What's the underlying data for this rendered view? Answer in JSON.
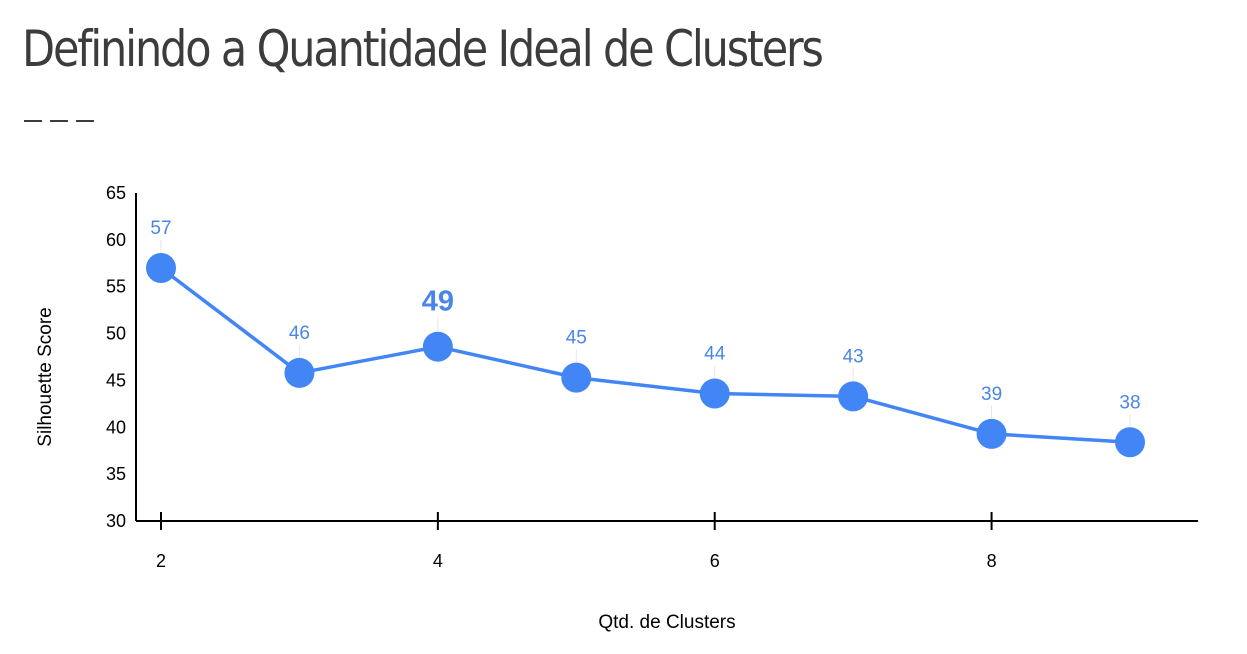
{
  "page": {
    "title": "Definindo a Quantidade Ideal de Clusters"
  },
  "chart_data": {
    "type": "line",
    "xlabel": "Qtd. de Clusters",
    "ylabel": "Silhouette Score",
    "xlim": [
      2,
      9
    ],
    "ylim": [
      30,
      65
    ],
    "x_ticks": [
      2,
      4,
      6,
      8
    ],
    "y_ticks": [
      30,
      35,
      40,
      45,
      50,
      55,
      60,
      65
    ],
    "grid": false,
    "series": [
      {
        "x": [
          2,
          3,
          4,
          5,
          6,
          7,
          8,
          9
        ],
        "values": [
          57,
          45.8,
          48.6,
          45.3,
          43.6,
          43.3,
          39.3,
          38.4
        ],
        "labels": [
          "57",
          "46",
          "49",
          "45",
          "44",
          "43",
          "39",
          "38"
        ],
        "highlight_index": 2,
        "color": "#4285f4"
      }
    ],
    "label_color": "#4a86e8",
    "axis_color": "#000000"
  }
}
